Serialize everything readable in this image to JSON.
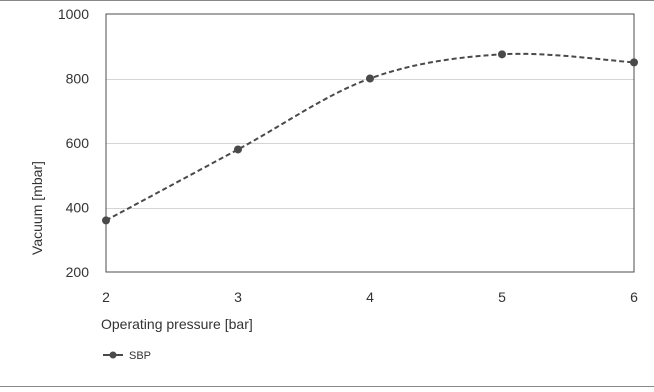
{
  "chart_data": {
    "type": "line",
    "title": "",
    "xlabel": "Operating pressure [bar]",
    "ylabel": "Vacuum [mbar]",
    "x": [
      2,
      3,
      4,
      5,
      6
    ],
    "xticks": [
      "2",
      "3",
      "4",
      "5",
      "6"
    ],
    "yticks": [
      "200",
      "400",
      "600",
      "800",
      "1000"
    ],
    "xlim": [
      2,
      6
    ],
    "ylim": [
      200,
      1000
    ],
    "grid": "horizontal",
    "legend_position": "bottom-left",
    "series": [
      {
        "name": "SBP",
        "values": [
          360,
          580,
          800,
          875,
          850
        ],
        "color": "#4a4a4a",
        "line_style": "dashed",
        "marker": "circle",
        "smooth": true
      }
    ]
  }
}
